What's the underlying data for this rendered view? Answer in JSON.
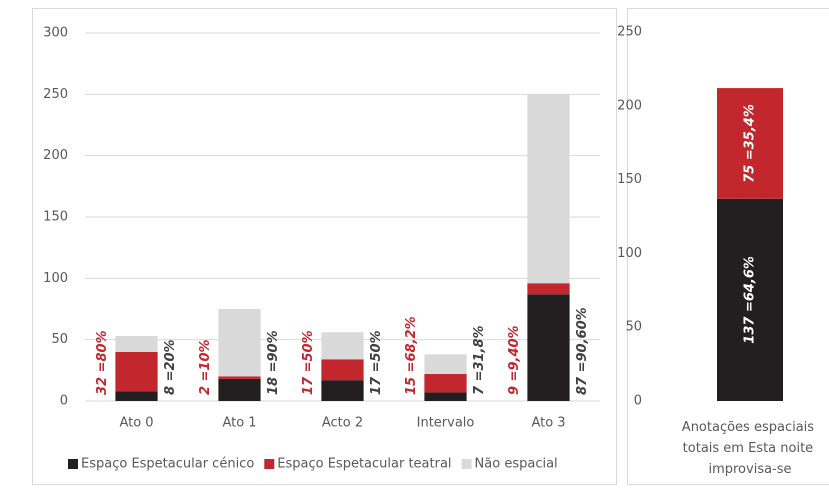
{
  "chart_data": [
    {
      "type": "stacked_bar",
      "categories": [
        "Ato 0",
        "Ato 1",
        "Acto 2",
        "Intervalo",
        "Ato 3"
      ],
      "series": [
        {
          "name": "Espaço Espetacular cénico",
          "color": "#231f20",
          "values": [
            8,
            18,
            17,
            7,
            87
          ],
          "value_labels": [
            "8 =20%",
            "18 =90%",
            "17 =50%",
            "7 =31,8%",
            "87 =90,60%"
          ]
        },
        {
          "name": "Espaço Espetacular teatral",
          "color": "#c1272d",
          "values": [
            32,
            2,
            17,
            15,
            9
          ],
          "value_labels": [
            "32 =80%",
            "2 =10%",
            "17 =50%",
            "15 =68,2%",
            "9 =9,40%"
          ]
        },
        {
          "name": "Não espacial",
          "color": "#d9d9d9",
          "values": [
            13,
            55,
            22,
            16,
            154
          ]
        }
      ],
      "ylim": [
        0,
        300
      ],
      "yticks": [
        0,
        50,
        100,
        150,
        200,
        250,
        300
      ],
      "grid": true,
      "legend": "bottom",
      "data_labels": "beside"
    },
    {
      "type": "stacked_bar",
      "categories": [
        "Anotações espaciais totais em Esta noite improvisa-se"
      ],
      "series": [
        {
          "name": "Espaço Espetacular cénico",
          "color": "#231f20",
          "values": [
            137
          ],
          "value_labels": [
            "137 =64,6%"
          ]
        },
        {
          "name": "Espaço Espetacular teatral",
          "color": "#c1272d",
          "values": [
            75
          ],
          "value_labels": [
            "75 =35,4%"
          ]
        }
      ],
      "ylim": [
        0,
        250
      ],
      "yticks": [
        0,
        50,
        100,
        150,
        200,
        250
      ],
      "grid": false,
      "legend": "none",
      "data_labels": "inside"
    }
  ]
}
